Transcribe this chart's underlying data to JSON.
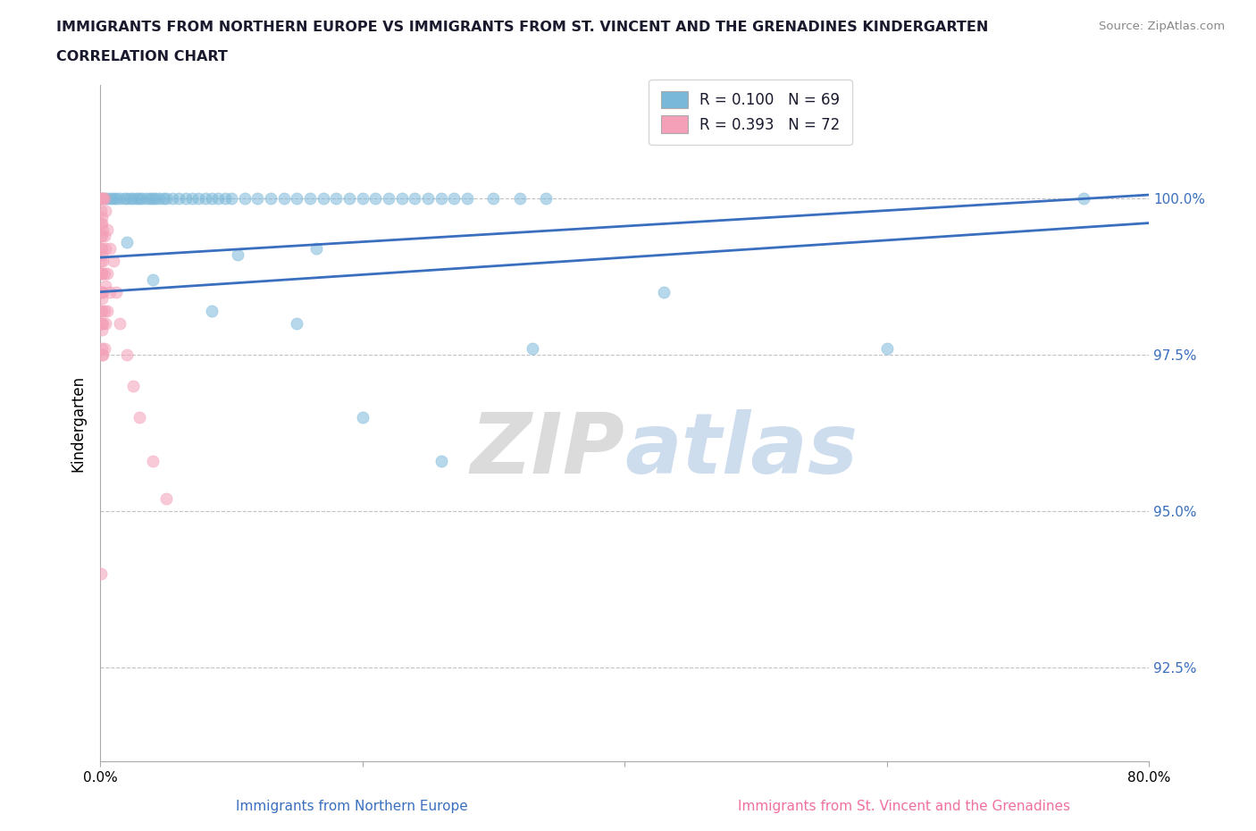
{
  "title_line1": "IMMIGRANTS FROM NORTHERN EUROPE VS IMMIGRANTS FROM ST. VINCENT AND THE GRENADINES KINDERGARTEN",
  "title_line2": "CORRELATION CHART",
  "source_text": "Source: ZipAtlas.com",
  "ylabel": "Kindergarten",
  "xlabel_bottom_left": "Immigrants from Northern Europe",
  "xlabel_bottom_right": "Immigrants from St. Vincent and the Grenadines",
  "xlim": [
    0.0,
    80.0
  ],
  "ylim": [
    91.0,
    101.8
  ],
  "yticks": [
    92.5,
    95.0,
    97.5,
    100.0
  ],
  "ytick_labels": [
    "92.5%",
    "95.0%",
    "97.5%",
    "100.0%"
  ],
  "xticks": [
    0.0,
    20.0,
    40.0,
    60.0,
    80.0
  ],
  "xtick_labels": [
    "0.0%",
    "",
    "",
    "",
    "80.0%"
  ],
  "watermark_zip": "ZIP",
  "watermark_atlas": "atlas",
  "legend_r1": "R = 0.100   N = 69",
  "legend_r2": "R = 0.393   N = 72",
  "blue_color": "#7ab8d9",
  "pink_color": "#f4a0b8",
  "trend_color": "#3a6fbf",
  "blue_scatter_x": [
    0.3,
    0.5,
    0.8,
    1.0,
    1.2,
    1.5,
    1.8,
    2.0,
    2.3,
    2.5,
    2.8,
    3.0,
    3.2,
    3.5,
    3.8,
    4.0,
    4.2,
    4.5,
    4.8,
    5.0,
    5.5,
    6.0,
    6.5,
    7.0,
    7.5,
    8.0,
    8.5,
    9.0,
    9.5,
    10.0,
    11.0,
    12.0,
    13.0,
    14.0,
    15.0,
    16.0,
    17.0,
    18.0,
    19.0,
    20.0,
    21.0,
    22.0,
    23.0,
    24.0,
    25.0,
    26.0,
    27.0,
    28.0,
    30.0,
    32.0,
    34.0,
    10.5,
    16.5,
    43.0,
    60.0,
    75.0
  ],
  "blue_scatter_y": [
    100.0,
    100.0,
    100.0,
    100.0,
    100.0,
    100.0,
    100.0,
    100.0,
    100.0,
    100.0,
    100.0,
    100.0,
    100.0,
    100.0,
    100.0,
    100.0,
    100.0,
    100.0,
    100.0,
    100.0,
    100.0,
    100.0,
    100.0,
    100.0,
    100.0,
    100.0,
    100.0,
    100.0,
    100.0,
    100.0,
    100.0,
    100.0,
    100.0,
    100.0,
    100.0,
    100.0,
    100.0,
    100.0,
    100.0,
    100.0,
    100.0,
    100.0,
    100.0,
    100.0,
    100.0,
    100.0,
    100.0,
    100.0,
    100.0,
    100.0,
    100.0,
    99.1,
    99.2,
    98.5,
    97.6,
    100.0
  ],
  "blue_outlier_x": [
    2.0,
    4.0,
    8.5,
    15.0,
    33.0,
    20.0,
    26.0
  ],
  "blue_outlier_y": [
    99.3,
    98.7,
    98.2,
    98.0,
    97.6,
    96.5,
    95.8
  ],
  "pink_scatter_x": [
    0.05,
    0.05,
    0.05,
    0.05,
    0.05,
    0.05,
    0.05,
    0.05,
    0.05,
    0.05,
    0.1,
    0.1,
    0.1,
    0.1,
    0.1,
    0.1,
    0.1,
    0.1,
    0.1,
    0.15,
    0.15,
    0.15,
    0.15,
    0.15,
    0.15,
    0.15,
    0.2,
    0.2,
    0.2,
    0.2,
    0.2,
    0.2,
    0.3,
    0.3,
    0.3,
    0.3,
    0.3,
    0.4,
    0.4,
    0.4,
    0.4,
    0.5,
    0.5,
    0.5,
    0.7,
    0.7,
    1.0,
    1.2,
    1.5,
    2.0,
    2.5,
    3.0,
    4.0,
    5.0,
    0.05
  ],
  "pink_scatter_y": [
    100.0,
    99.8,
    99.6,
    99.4,
    99.2,
    99.0,
    98.8,
    98.5,
    98.2,
    98.0,
    100.0,
    99.7,
    99.4,
    99.1,
    98.8,
    98.5,
    98.2,
    97.9,
    97.5,
    100.0,
    99.6,
    99.2,
    98.8,
    98.4,
    98.0,
    97.6,
    100.0,
    99.5,
    99.0,
    98.5,
    98.0,
    97.5,
    100.0,
    99.4,
    98.8,
    98.2,
    97.6,
    99.8,
    99.2,
    98.6,
    98.0,
    99.5,
    98.8,
    98.2,
    99.2,
    98.5,
    99.0,
    98.5,
    98.0,
    97.5,
    97.0,
    96.5,
    95.8,
    95.2,
    94.0
  ]
}
